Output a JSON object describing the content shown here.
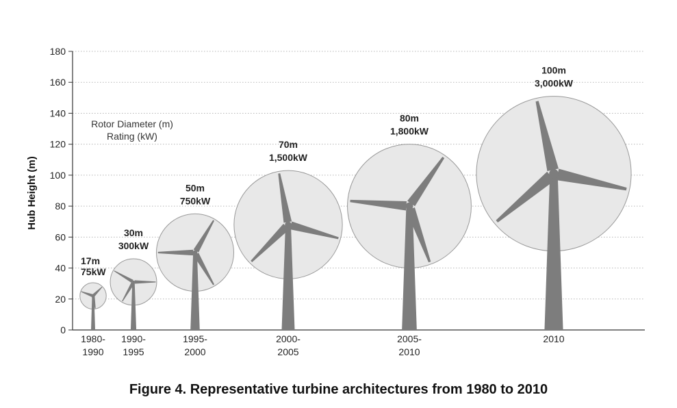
{
  "caption": "Figure 4. Representative turbine architectures from 1980 to 2010",
  "legend": {
    "line1": "Rotor Diameter (m)",
    "line2": "Rating (kW)"
  },
  "chart_data": {
    "type": "scatter",
    "ylabel": "Hub Height (m)",
    "ylim": [
      0,
      180
    ],
    "yticks": [
      0,
      20,
      40,
      60,
      80,
      100,
      120,
      140,
      160,
      180
    ],
    "grid": true,
    "series": [
      {
        "points": [
          {
            "period": [
              "1980-",
              "1990"
            ],
            "hub_height_m": 22,
            "rotor_diameter_m": 17,
            "diameter_label": "17m",
            "rating_label": "75kW"
          },
          {
            "period": [
              "1990-",
              "1995"
            ],
            "hub_height_m": 31,
            "rotor_diameter_m": 30,
            "diameter_label": "30m",
            "rating_label": "300kW"
          },
          {
            "period": [
              "1995-",
              "2000"
            ],
            "hub_height_m": 50,
            "rotor_diameter_m": 50,
            "diameter_label": "50m",
            "rating_label": "750kW"
          },
          {
            "period": [
              "2000-",
              "2005"
            ],
            "hub_height_m": 68,
            "rotor_diameter_m": 70,
            "diameter_label": "70m",
            "rating_label": "1,500kW"
          },
          {
            "period": [
              "2005-",
              "2010"
            ],
            "hub_height_m": 80,
            "rotor_diameter_m": 80,
            "diameter_label": "80m",
            "rating_label": "1,800kW"
          },
          {
            "period": [
              "2010"
            ],
            "hub_height_m": 101,
            "rotor_diameter_m": 100,
            "diameter_label": "100m",
            "rating_label": "3,000kW"
          }
        ]
      }
    ]
  },
  "colors": {
    "disc_fill": "#e8e8e8",
    "disc_stroke": "#999999",
    "turbine": "#7d7d7d",
    "grid": "#b5b5b5",
    "axis": "#333333"
  }
}
